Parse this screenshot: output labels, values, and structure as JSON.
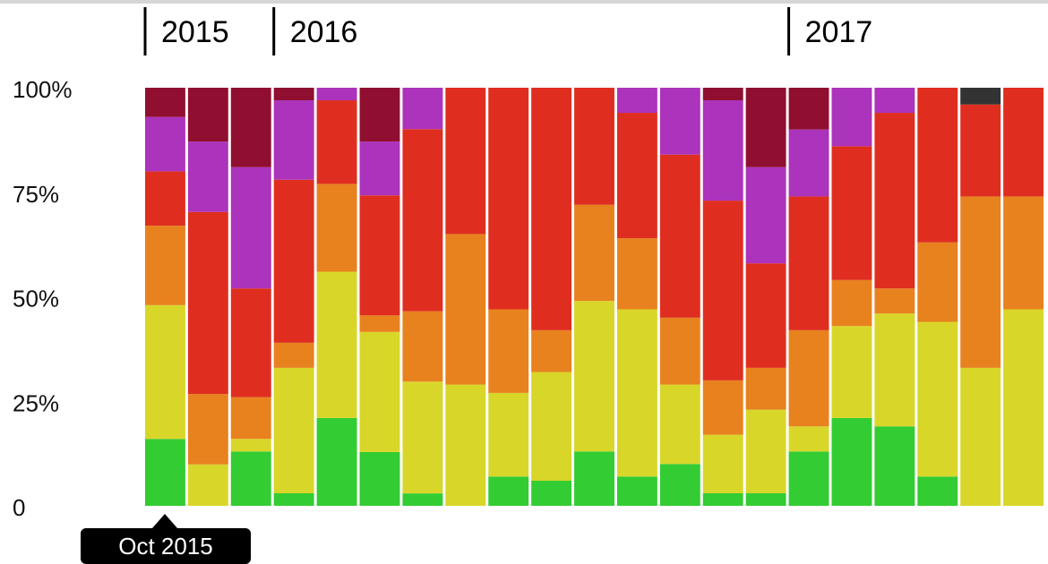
{
  "chart_data": {
    "type": "bar",
    "stacked": true,
    "normalized": true,
    "y_tick_labels": [
      "0",
      "25%",
      "50%",
      "75%",
      "100%"
    ],
    "y_ticks": [
      0,
      25,
      50,
      75,
      100
    ],
    "ylim": [
      0,
      100
    ],
    "year_markers": [
      {
        "label": "2015",
        "index": 0
      },
      {
        "label": "2016",
        "index": 3
      },
      {
        "label": "2017",
        "index": 15
      }
    ],
    "series_colors": [
      "#33cc33",
      "#d9d62a",
      "#e8821e",
      "#df2e20",
      "#ac33bb",
      "#900f30",
      "#333333"
    ],
    "bars": [
      [
        16,
        32,
        19,
        13,
        13,
        7,
        0
      ],
      [
        0,
        10,
        17,
        44,
        17,
        13,
        0
      ],
      [
        13,
        3,
        10,
        26,
        29,
        19,
        0
      ],
      [
        3,
        30,
        6,
        39,
        19,
        3,
        0
      ],
      [
        21,
        35,
        21,
        20,
        3,
        0,
        0
      ],
      [
        13,
        29,
        4,
        29,
        13,
        13,
        0
      ],
      [
        3,
        27,
        17,
        44,
        10,
        0,
        0
      ],
      [
        0,
        29,
        36,
        35,
        0,
        0,
        0
      ],
      [
        7,
        20,
        20,
        53,
        0,
        0,
        0
      ],
      [
        6,
        26,
        10,
        58,
        0,
        0,
        0
      ],
      [
        13,
        36,
        23,
        28,
        0,
        0,
        0
      ],
      [
        7,
        40,
        17,
        30,
        6,
        0,
        0
      ],
      [
        10,
        19,
        16,
        39,
        16,
        0,
        0
      ],
      [
        3,
        14,
        13,
        43,
        24,
        3,
        0
      ],
      [
        3,
        20,
        10,
        25,
        23,
        19,
        0
      ],
      [
        13,
        6,
        23,
        32,
        16,
        10,
        0
      ],
      [
        21,
        22,
        11,
        32,
        14,
        0,
        0
      ],
      [
        19,
        27,
        6,
        42,
        6,
        0,
        0
      ],
      [
        7,
        37,
        19,
        37,
        0,
        0,
        0
      ],
      [
        0,
        33,
        41,
        22,
        0,
        0,
        4
      ],
      [
        0,
        47,
        27,
        26,
        0,
        0,
        0
      ]
    ]
  },
  "tooltip": {
    "label": "Oct 2015"
  }
}
